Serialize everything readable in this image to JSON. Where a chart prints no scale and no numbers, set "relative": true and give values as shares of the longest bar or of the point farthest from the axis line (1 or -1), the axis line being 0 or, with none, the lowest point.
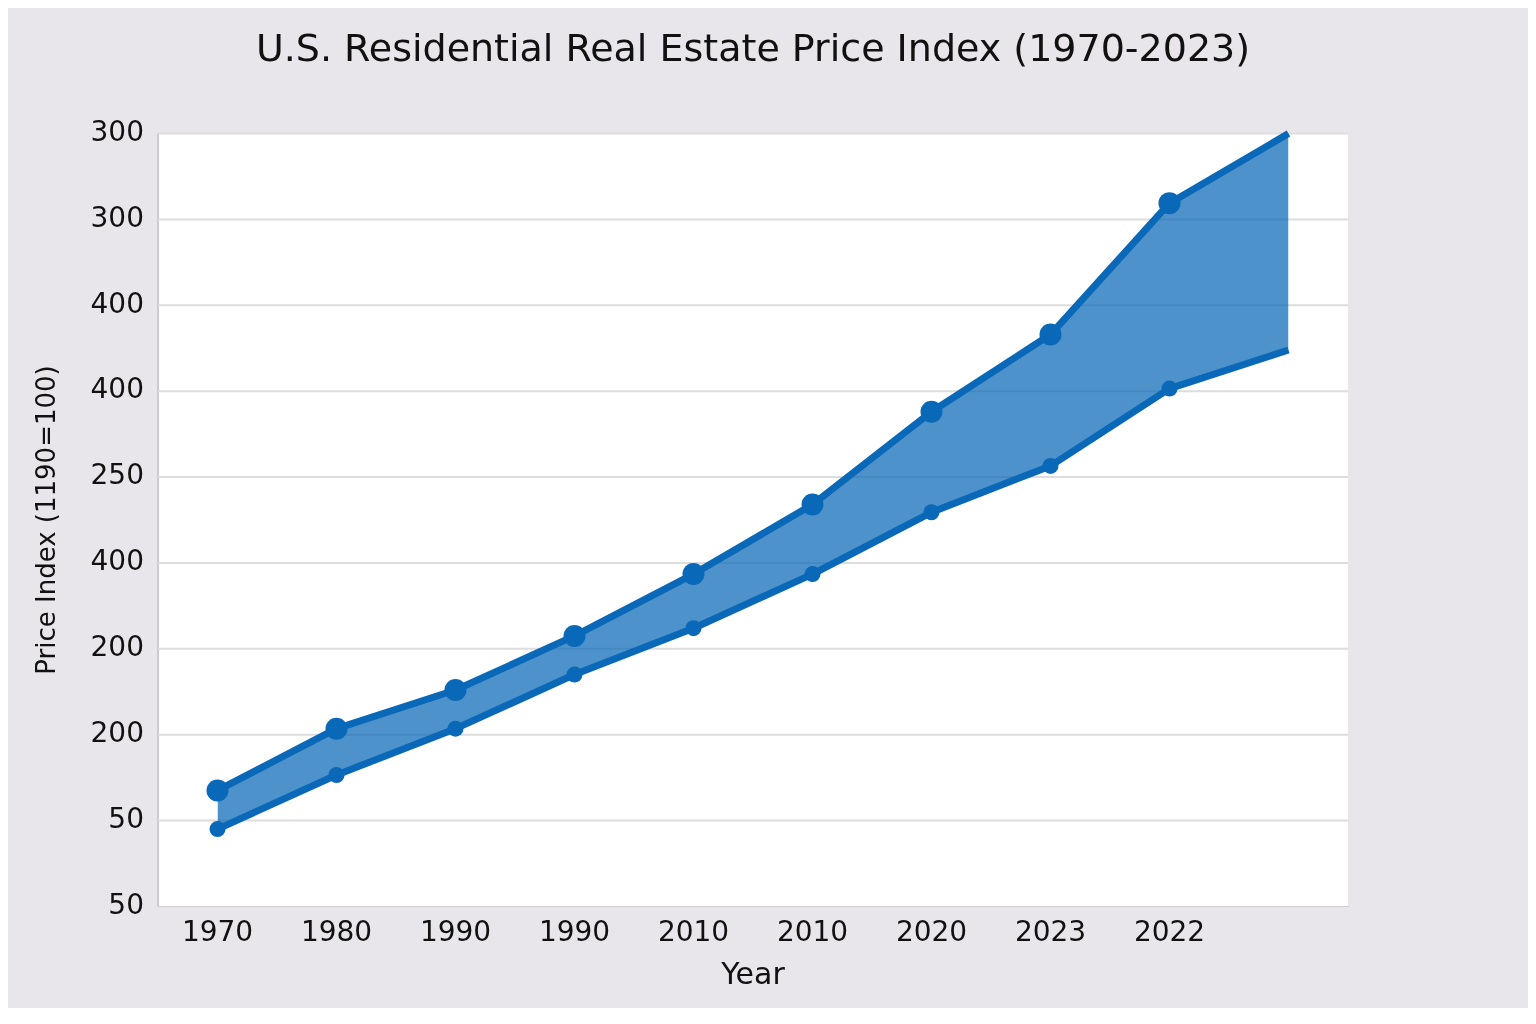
{
  "chart_data": {
    "type": "line",
    "title": "U.S. Residential Real Estate Price Index (1970-2023)",
    "xlabel": "Year",
    "ylabel": "Price Index (1190=100)",
    "categories": [
      "1970",
      "1980",
      "1990",
      "1990",
      "2010",
      "2010",
      "2020",
      "2023",
      "2022",
      null
    ],
    "relative": true,
    "annotations": [
      "50",
      "50",
      "200",
      "200",
      "400",
      "250",
      "400",
      "400",
      "300",
      "300"
    ],
    "series": [
      {
        "color": "#0a68b8",
        "values": [
          0.1,
          0.17,
          0.23,
          0.3,
          0.36,
          0.43,
          0.51,
          0.57,
          0.67,
          0.72
        ]
      },
      {
        "type": "area",
        "color": "#0a68b8",
        "values": [
          0.15,
          0.23,
          0.28,
          0.35,
          0.43,
          0.52,
          0.64,
          0.74,
          0.91,
          1
        ]
      }
    ],
    "marker": "circle",
    "grid": "y",
    "legend": false
  }
}
